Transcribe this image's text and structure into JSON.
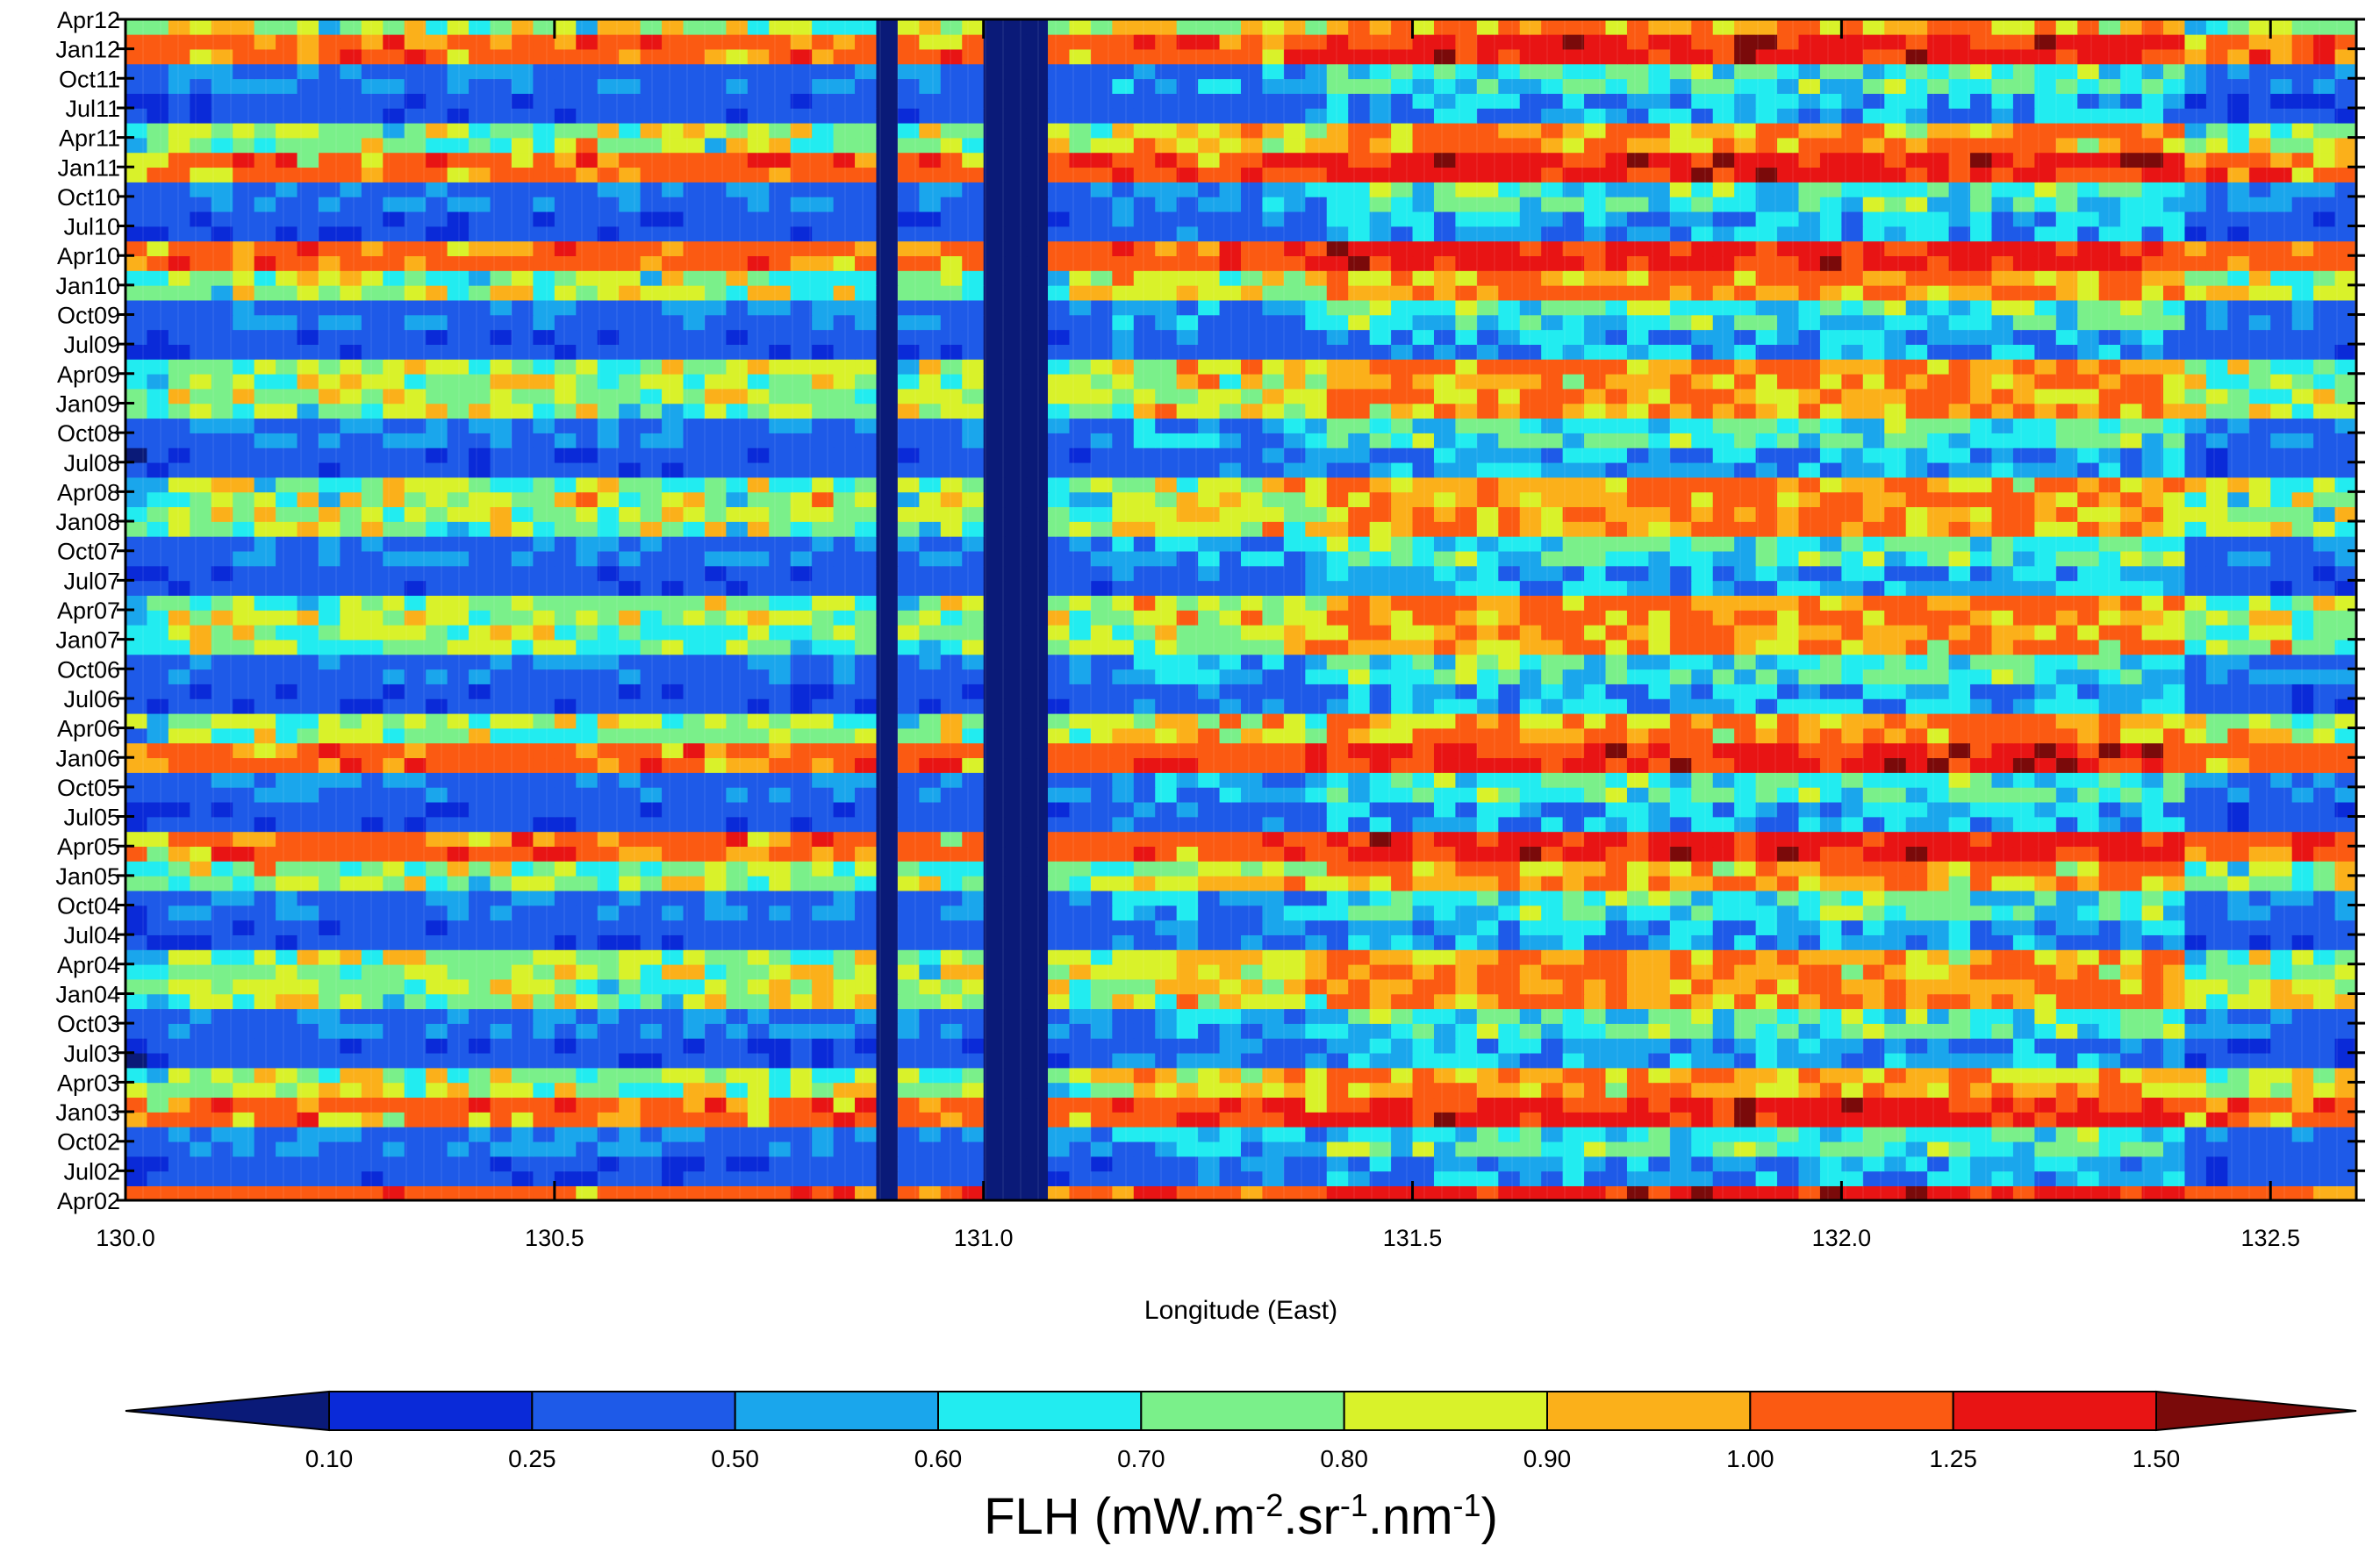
{
  "chart_data": {
    "type": "heatmap",
    "title": "",
    "xlabel": "Longitude (East)",
    "ylabel": "",
    "xlim": [
      130.0,
      132.6
    ],
    "x_ticks": [
      "130.0",
      "130.5",
      "131.0",
      "131.5",
      "132.0",
      "132.5"
    ],
    "x_tick_values": [
      130.0,
      130.5,
      131.0,
      131.5,
      132.0,
      132.5
    ],
    "y_ticks": [
      "Apr02",
      "Jul02",
      "Oct02",
      "Jan03",
      "Apr03",
      "Jul03",
      "Oct03",
      "Jan04",
      "Apr04",
      "Jul04",
      "Oct04",
      "Jan05",
      "Apr05",
      "Jul05",
      "Oct05",
      "Jan06",
      "Apr06",
      "Jul06",
      "Oct06",
      "Jan07",
      "Apr07",
      "Jul07",
      "Oct07",
      "Jan08",
      "Apr08",
      "Jul08",
      "Oct08",
      "Jan09",
      "Apr09",
      "Jul09",
      "Oct09",
      "Jan10",
      "Apr10",
      "Jul10",
      "Oct10",
      "Jan11",
      "Apr11",
      "Jul11",
      "Oct11",
      "Jan12",
      "Apr12"
    ],
    "colorbar": {
      "title": "FLH (mW.m-2.sr-1.nm-1)",
      "title_base": "FLH (mW.m",
      "title_parts": [
        {
          "text": "FLH (mW.m",
          "sup": false
        },
        {
          "text": "-2",
          "sup": true
        },
        {
          "text": ".sr",
          "sup": false
        },
        {
          "text": "-1",
          "sup": true
        },
        {
          "text": ".nm",
          "sup": false
        },
        {
          "text": "-1",
          "sup": true
        },
        {
          "text": ")",
          "sup": false
        }
      ],
      "levels": [
        "0.10",
        "0.25",
        "0.50",
        "0.60",
        "0.70",
        "0.80",
        "0.90",
        "1.00",
        "1.25",
        "1.50"
      ],
      "colors": [
        "#0a1a78",
        "#0a2ad8",
        "#1e5ae8",
        "#1aa6ec",
        "#22ecf0",
        "#7af08a",
        "#d9f22a",
        "#fbb01a",
        "#fb5a12",
        "#e81414",
        "#7a0a0a"
      ]
    },
    "features": {
      "dark_strips_lon": [
        [
          130.88,
          130.9
        ],
        [
          131.01,
          131.07
        ]
      ],
      "high_flh_region_lon": [
        131.4,
        132.4
      ],
      "peak_rows": [
        "Jan03",
        "Apr05",
        "Jan06",
        "Apr10",
        "Jan11",
        "Jan12",
        "Apr02"
      ]
    }
  }
}
